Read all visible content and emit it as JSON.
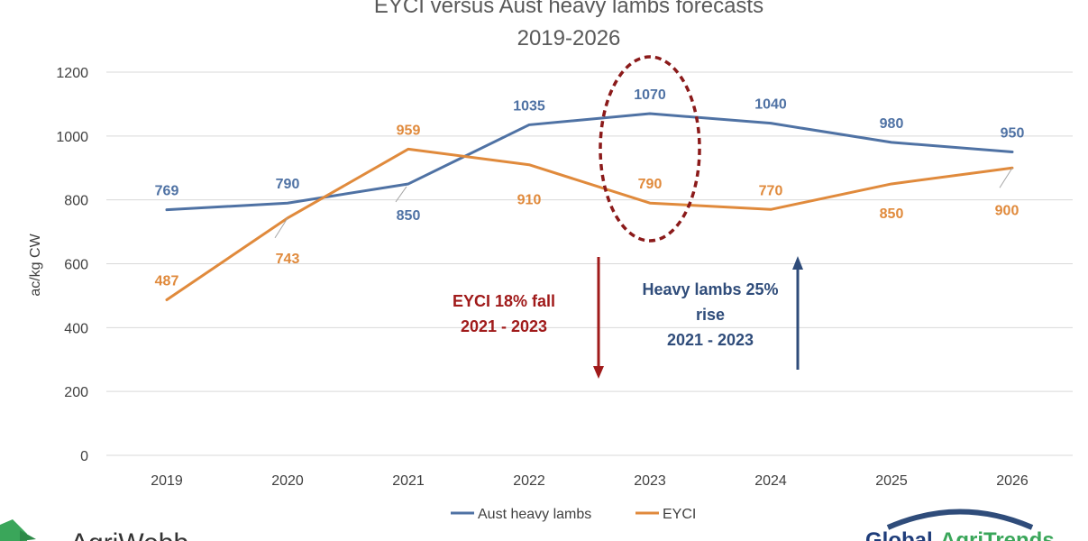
{
  "chart_data": {
    "type": "line",
    "title": "EYCI versus Aust heavy lambs forecasts",
    "subtitle": "2019-2026",
    "ylabel": "ac/kg CW",
    "xlabel": "",
    "ylim": [
      0,
      1200
    ],
    "yticks": [
      0,
      200,
      400,
      600,
      800,
      1000,
      1200
    ],
    "grid": true,
    "legend_position": "bottom",
    "categories": [
      "2019",
      "2020",
      "2021",
      "2022",
      "2023",
      "2024",
      "2025",
      "2026"
    ],
    "series": [
      {
        "name": "Aust heavy lambs",
        "color": "#4F72A4",
        "values": [
          769,
          790,
          850,
          1035,
          1070,
          1040,
          980,
          950
        ]
      },
      {
        "name": "EYCI",
        "color": "#E08A3C",
        "values": [
          487,
          743,
          959,
          910,
          790,
          770,
          850,
          900
        ]
      }
    ],
    "annotations": {
      "fall": {
        "lines": [
          "EYCI 18% fall",
          "2021 - 2023"
        ],
        "color": "#A01A1A"
      },
      "rise": {
        "lines": [
          "Heavy lambs 25%",
          "rise",
          "2021 - 2023"
        ],
        "color": "#2F4C7A"
      },
      "highlight_category": "2023",
      "highlight_color": "#8B1A1A"
    }
  },
  "logos": {
    "left": "AgriWebb",
    "right_part1": "Global",
    "right_part2": "AgriTrends"
  }
}
